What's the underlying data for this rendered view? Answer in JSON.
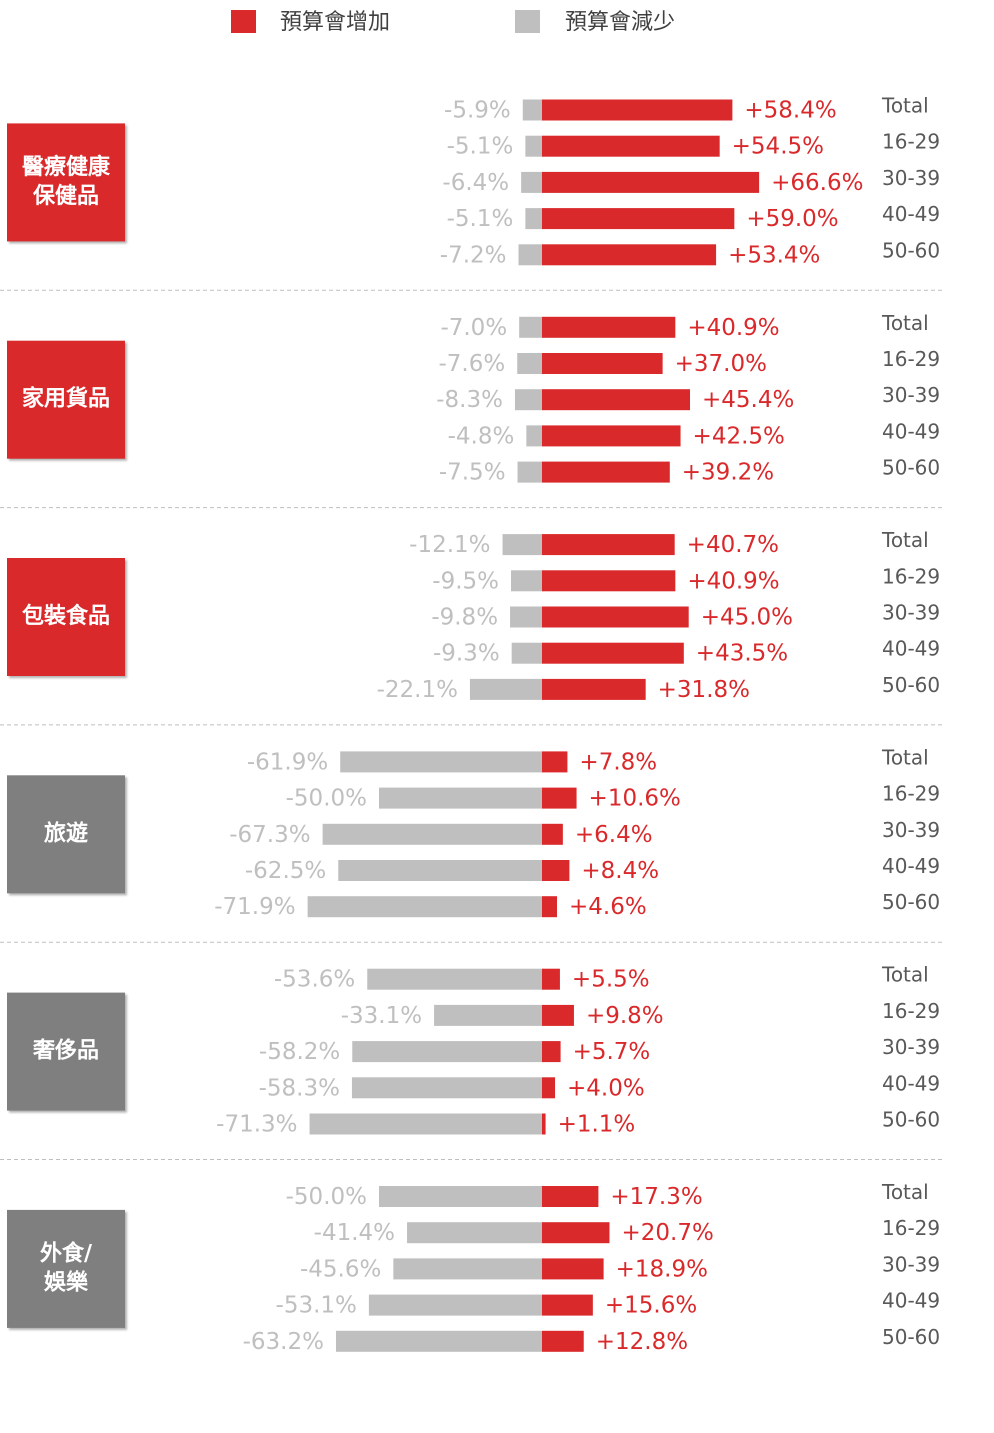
{
  "chart_data": {
    "type": "diverging-bar",
    "series": [
      {
        "name": "預算會增加",
        "color": "#d9292b"
      },
      {
        "name": "預算會減少",
        "color": "#bfbfbf"
      }
    ],
    "groups": [
      {
        "label": [
          "醫療健康",
          "保健品"
        ],
        "label_color": "#d9292b",
        "categories": [
          "Total",
          "16-29",
          "30-39",
          "40-49",
          "50-60"
        ],
        "increase": {
          "values": [
            58.4,
            54.5,
            66.6,
            59.0,
            53.4
          ],
          "value_labels": [
            "+58.4%",
            "+54.5%",
            "+66.6%",
            "+59.0%",
            "+53.4%"
          ]
        },
        "decrease": {
          "values": [
            -5.9,
            -5.1,
            -6.4,
            -5.1,
            -7.2
          ],
          "value_labels": [
            "-5.9%",
            "-5.1%",
            "-6.4%",
            "-5.1%",
            "-7.2%"
          ]
        }
      },
      {
        "label": [
          "家用貨品"
        ],
        "label_color": "#d9292b",
        "categories": [
          "Total",
          "16-29",
          "30-39",
          "40-49",
          "50-60"
        ],
        "increase": {
          "values": [
            40.9,
            37.0,
            45.4,
            42.5,
            39.2
          ],
          "value_labels": [
            "+40.9%",
            "+37.0%",
            "+45.4%",
            "+42.5%",
            "+39.2%"
          ]
        },
        "decrease": {
          "values": [
            -7.0,
            -7.6,
            -8.3,
            -4.8,
            -7.5
          ],
          "value_labels": [
            "-7.0%",
            "-7.6%",
            "-8.3%",
            "-4.8%",
            "-7.5%"
          ]
        }
      },
      {
        "label": [
          "包裝食品"
        ],
        "label_color": "#d9292b",
        "categories": [
          "Total",
          "16-29",
          "30-39",
          "40-49",
          "50-60"
        ],
        "increase": {
          "values": [
            40.7,
            40.9,
            45.0,
            43.5,
            31.8
          ],
          "value_labels": [
            "+40.7%",
            "+40.9%",
            "+45.0%",
            "+43.5%",
            "+31.8%"
          ]
        },
        "decrease": {
          "values": [
            -12.1,
            -9.5,
            -9.8,
            -9.3,
            -22.1
          ],
          "value_labels": [
            "-12.1%",
            "-9.5%",
            "-9.8%",
            "-9.3%",
            "-22.1%"
          ]
        }
      },
      {
        "label": [
          "旅遊"
        ],
        "label_color": "#7f7f7f",
        "categories": [
          "Total",
          "16-29",
          "30-39",
          "40-49",
          "50-60"
        ],
        "increase": {
          "values": [
            7.8,
            10.6,
            6.4,
            8.4,
            4.6
          ],
          "value_labels": [
            "+7.8%",
            "+10.6%",
            "+6.4%",
            "+8.4%",
            "+4.6%"
          ]
        },
        "decrease": {
          "values": [
            -61.9,
            -50.0,
            -67.3,
            -62.5,
            -71.9
          ],
          "value_labels": [
            "-61.9%",
            "-50.0%",
            "-67.3%",
            "-62.5%",
            "-71.9%"
          ]
        }
      },
      {
        "label": [
          "奢侈品"
        ],
        "label_color": "#7f7f7f",
        "categories": [
          "Total",
          "16-29",
          "30-39",
          "40-49",
          "50-60"
        ],
        "increase": {
          "values": [
            5.5,
            9.8,
            5.7,
            4.0,
            1.1
          ],
          "value_labels": [
            "+5.5%",
            "+9.8%",
            "+5.7%",
            "+4.0%",
            "+1.1%"
          ]
        },
        "decrease": {
          "values": [
            -53.6,
            -33.1,
            -58.2,
            -58.3,
            -71.3
          ],
          "value_labels": [
            "-53.6%",
            "-33.1%",
            "-58.2%",
            "-58.3%",
            "-71.3%"
          ]
        }
      },
      {
        "label": [
          "外食/",
          "娛樂"
        ],
        "label_color": "#7f7f7f",
        "categories": [
          "Total",
          "16-29",
          "30-39",
          "40-49",
          "50-60"
        ],
        "increase": {
          "values": [
            17.3,
            20.7,
            18.9,
            15.6,
            12.8
          ],
          "value_labels": [
            "+17.3%",
            "+20.7%",
            "+18.9%",
            "+15.6%",
            "+12.8%"
          ]
        },
        "decrease": {
          "values": [
            -50.0,
            -41.4,
            -45.6,
            -53.1,
            -63.2
          ],
          "value_labels": [
            "-50.0%",
            "-41.4%",
            "-45.6%",
            "-53.1%",
            "-63.2%"
          ]
        }
      }
    ]
  }
}
